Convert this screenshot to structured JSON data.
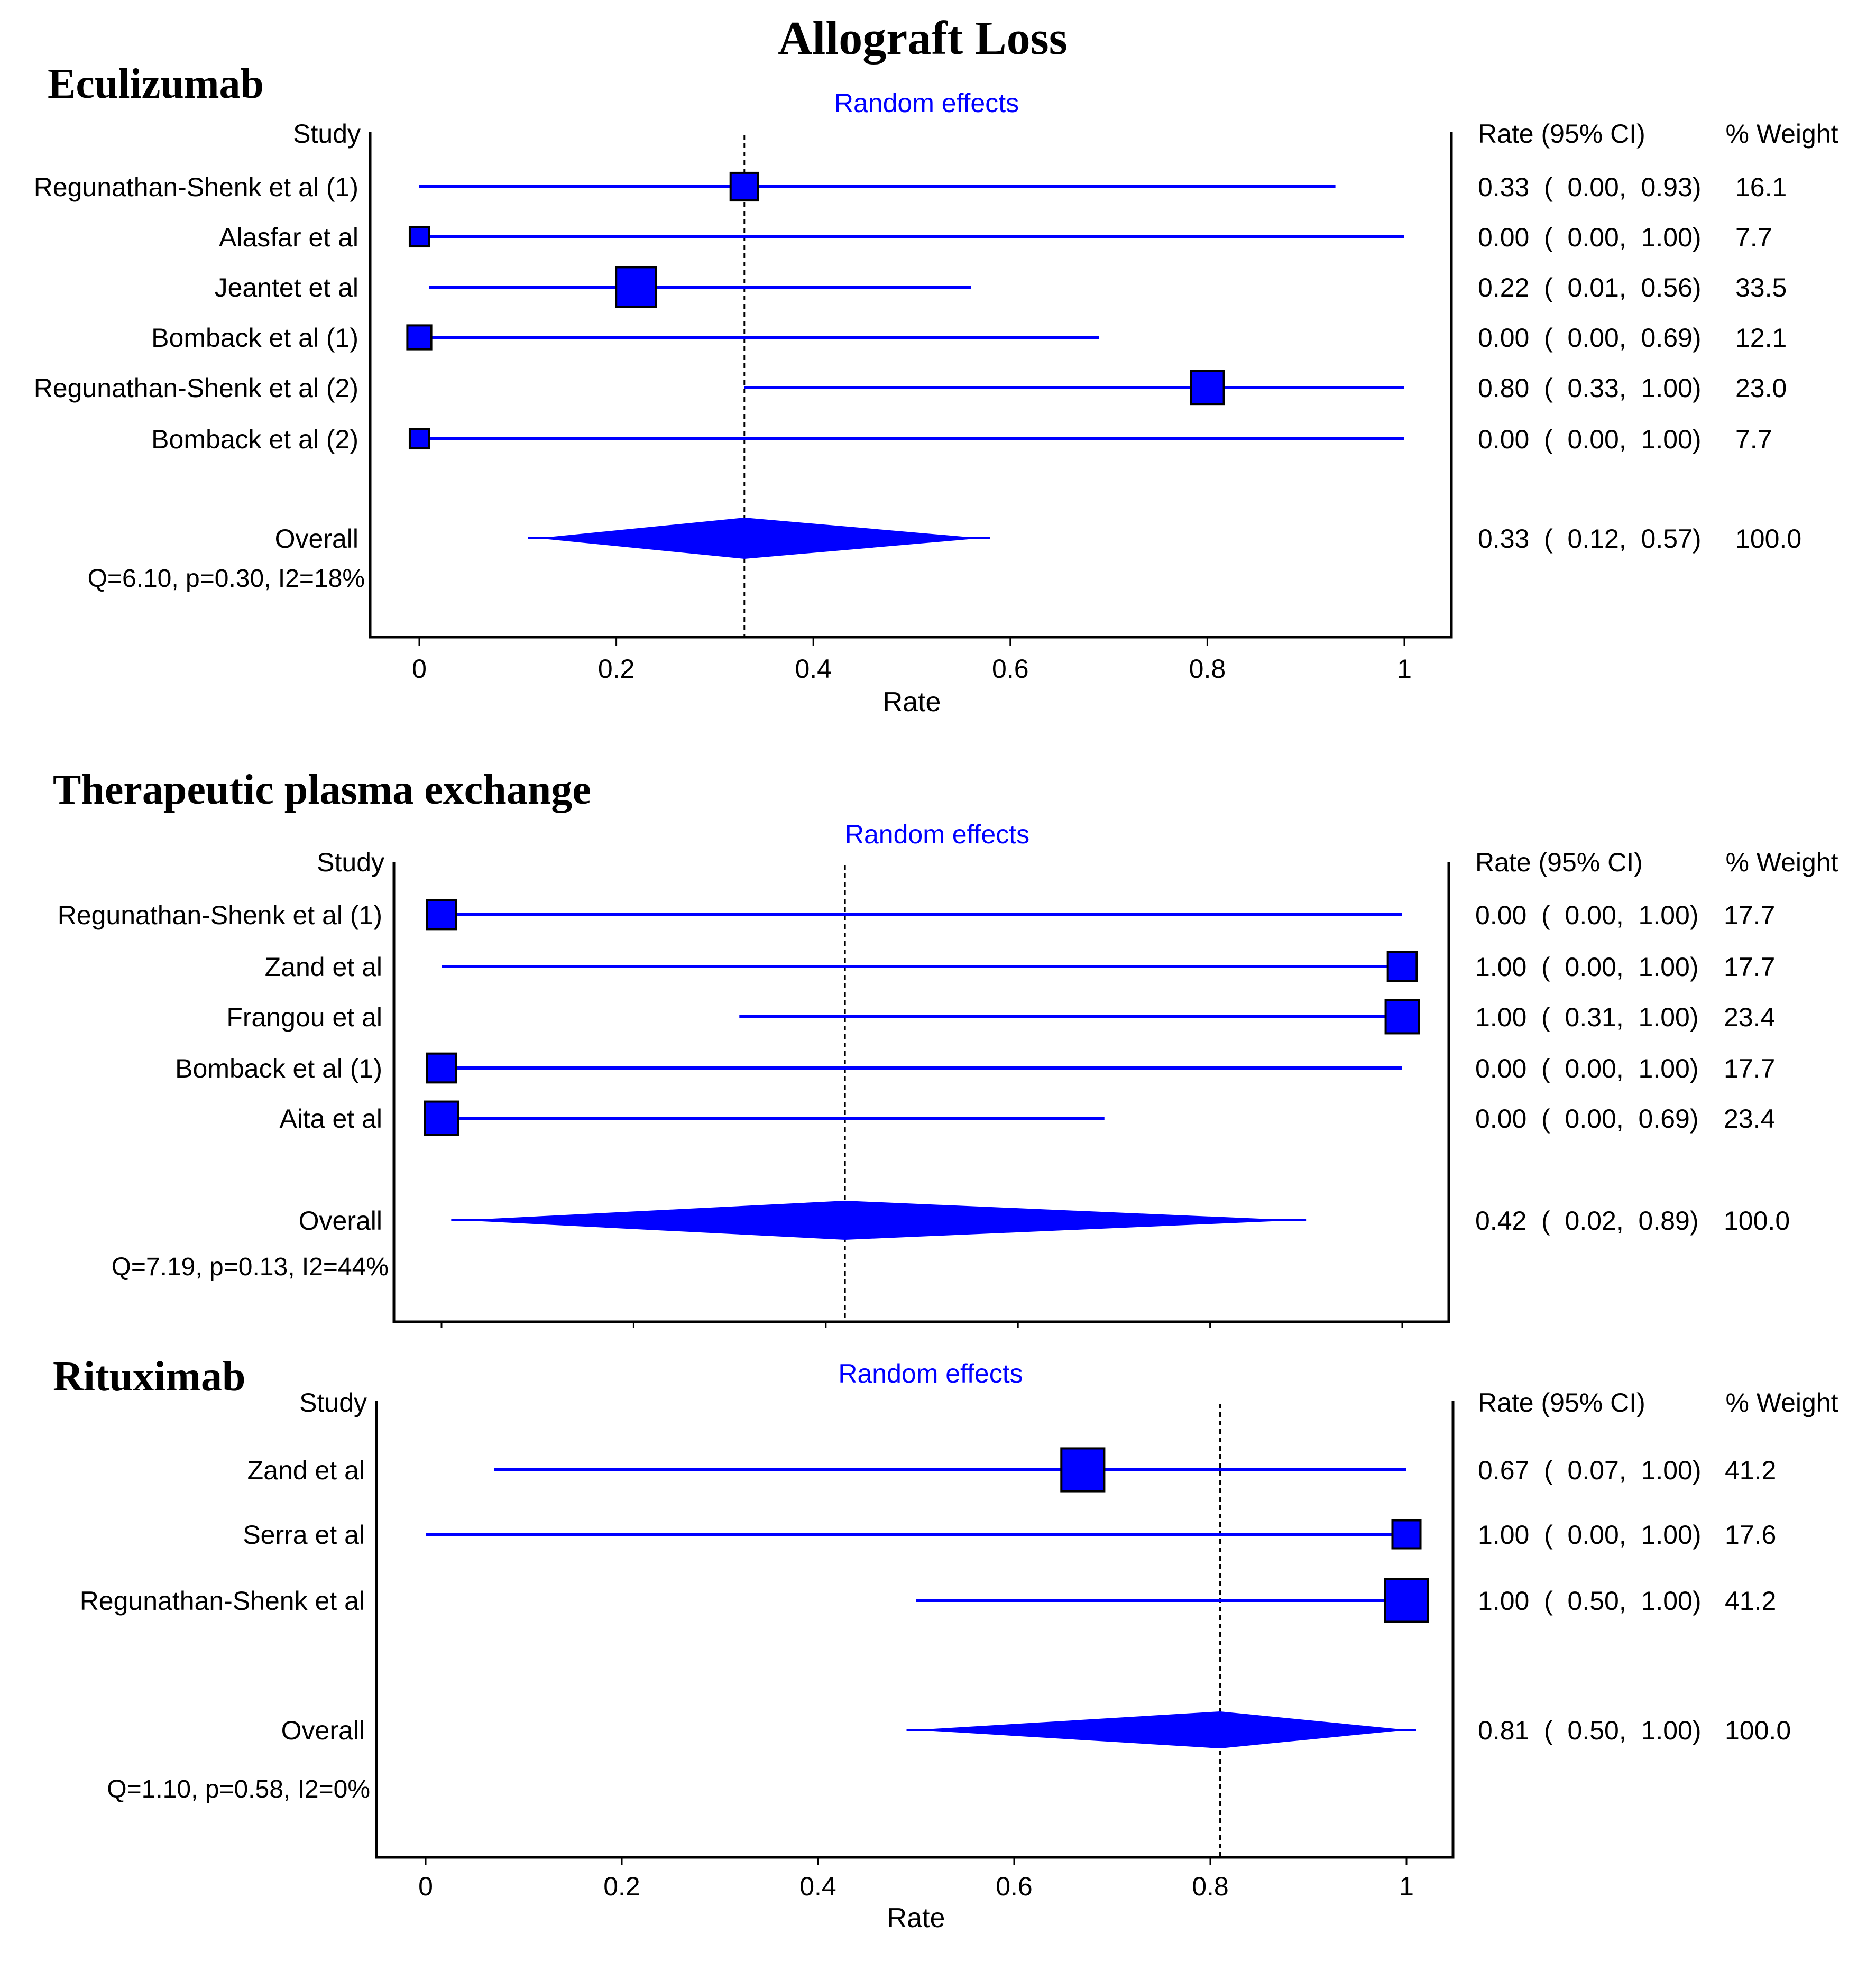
{
  "figure_title": "Allograft Loss",
  "chart_data": [
    {
      "type": "forest",
      "panel_title": "Eculizumab",
      "model_label": "Random effects",
      "study_header": "Study",
      "ci_header": "Rate (95% CI)",
      "weight_header": "% Weight",
      "xlabel": "Rate",
      "xlim": [
        0,
        1
      ],
      "xticks": [
        0,
        0.2,
        0.4,
        0.6,
        0.8,
        1
      ],
      "xtick_labels": [
        "0",
        "0.2",
        "0.4",
        "0.6",
        "0.8",
        "1"
      ],
      "show_tick_labels": true,
      "studies": [
        {
          "name": "Regunathan-Shenk et al (1)",
          "rate": 0.33,
          "lo": 0.0,
          "hi": 0.93,
          "weight": 16.1,
          "ci_text": "0.33  (  0.00,  0.93)",
          "weight_text": "16.1"
        },
        {
          "name": "Alasfar et al",
          "rate": 0.0,
          "lo": 0.0,
          "hi": 1.0,
          "weight": 7.7,
          "ci_text": "0.00  (  0.00,  1.00)",
          "weight_text": "7.7"
        },
        {
          "name": "Jeantet et al",
          "rate": 0.22,
          "lo": 0.01,
          "hi": 0.56,
          "weight": 33.5,
          "ci_text": "0.22  (  0.01,  0.56)",
          "weight_text": "33.5"
        },
        {
          "name": "Bomback et al (1)",
          "rate": 0.0,
          "lo": 0.0,
          "hi": 0.69,
          "weight": 12.1,
          "ci_text": "0.00  (  0.00,  0.69)",
          "weight_text": "12.1"
        },
        {
          "name": "Regunathan-Shenk et al (2)",
          "rate": 0.8,
          "lo": 0.33,
          "hi": 1.0,
          "weight": 23.0,
          "ci_text": "0.80  (  0.33,  1.00)",
          "weight_text": "23.0"
        },
        {
          "name": "Bomback et al (2)",
          "rate": 0.0,
          "lo": 0.0,
          "hi": 1.0,
          "weight": 7.7,
          "ci_text": "0.00  (  0.00,  1.00)",
          "weight_text": "7.7"
        }
      ],
      "overall": {
        "name": "Overall",
        "rate": 0.33,
        "lo": 0.12,
        "hi": 0.57,
        "ci_text": "0.33  (  0.12,  0.57)",
        "weight_text": "100.0"
      },
      "heterogeneity": "Q=6.10, p=0.30, I2=18%"
    },
    {
      "type": "forest",
      "panel_title": "Therapeutic plasma exchange",
      "model_label": "Random effects",
      "study_header": "Study",
      "ci_header": "Rate (95% CI)",
      "weight_header": "% Weight",
      "xlabel": "",
      "xlim": [
        0,
        1
      ],
      "xticks": [
        0,
        0.2,
        0.4,
        0.6,
        0.8,
        1
      ],
      "xtick_labels": [],
      "show_tick_labels": false,
      "studies": [
        {
          "name": "Regunathan-Shenk et al (1)",
          "rate": 0.0,
          "lo": 0.0,
          "hi": 1.0,
          "weight": 17.7,
          "ci_text": "0.00  (  0.00,  1.00)",
          "weight_text": "17.7"
        },
        {
          "name": "Zand et al",
          "rate": 1.0,
          "lo": 0.0,
          "hi": 1.0,
          "weight": 17.7,
          "ci_text": "1.00  (  0.00,  1.00)",
          "weight_text": "17.7"
        },
        {
          "name": "Frangou et al",
          "rate": 1.0,
          "lo": 0.31,
          "hi": 1.0,
          "weight": 23.4,
          "ci_text": "1.00  (  0.31,  1.00)",
          "weight_text": "23.4"
        },
        {
          "name": "Bomback et al (1)",
          "rate": 0.0,
          "lo": 0.0,
          "hi": 1.0,
          "weight": 17.7,
          "ci_text": "0.00  (  0.00,  1.00)",
          "weight_text": "17.7"
        },
        {
          "name": "Aita et al",
          "rate": 0.0,
          "lo": 0.0,
          "hi": 0.69,
          "weight": 23.4,
          "ci_text": "0.00  (  0.00,  0.69)",
          "weight_text": "23.4"
        }
      ],
      "overall": {
        "name": "Overall",
        "rate": 0.42,
        "lo": 0.02,
        "hi": 0.89,
        "ci_text": "0.42  (  0.02,  0.89)",
        "weight_text": "100.0"
      },
      "heterogeneity": "Q=7.19, p=0.13, I2=44%"
    },
    {
      "type": "forest",
      "panel_title": "Rituximab",
      "model_label": "Random effects",
      "study_header": "Study",
      "ci_header": "Rate (95% CI)",
      "weight_header": "% Weight",
      "xlabel": "Rate",
      "xlim": [
        0,
        1
      ],
      "xticks": [
        0,
        0.2,
        0.4,
        0.6,
        0.8,
        1
      ],
      "xtick_labels": [
        "0",
        "0.2",
        "0.4",
        "0.6",
        "0.8",
        "1"
      ],
      "show_tick_labels": true,
      "studies": [
        {
          "name": "Zand et al",
          "rate": 0.67,
          "lo": 0.07,
          "hi": 1.0,
          "weight": 41.2,
          "ci_text": "0.67  (  0.07,  1.00)",
          "weight_text": "41.2"
        },
        {
          "name": "Serra et al",
          "rate": 1.0,
          "lo": 0.0,
          "hi": 1.0,
          "weight": 17.6,
          "ci_text": "1.00  (  0.00,  1.00)",
          "weight_text": "17.6"
        },
        {
          "name": "Regunathan-Shenk et al",
          "rate": 1.0,
          "lo": 0.5,
          "hi": 1.0,
          "weight": 41.2,
          "ci_text": "1.00  (  0.50,  1.00)",
          "weight_text": "41.2"
        }
      ],
      "overall": {
        "name": "Overall",
        "rate": 0.81,
        "lo": 0.5,
        "hi": 1.0,
        "ci_text": "0.81  (  0.50,  1.00)",
        "weight_text": "100.0"
      },
      "heterogeneity": "Q=1.10, p=0.58, I2=0%"
    }
  ]
}
